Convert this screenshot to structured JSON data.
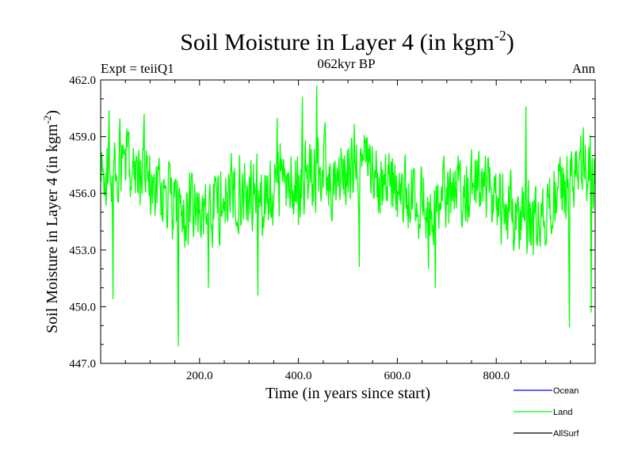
{
  "chart_data": {
    "type": "line",
    "title": "Soil Moisture in Layer 4 (in kgm",
    "title_sup": "-2",
    "title_end": ")",
    "subtitle": "062kyr BP",
    "left_note": "Expt = teiiQ1",
    "right_note": "Ann",
    "xlabel": "Time (in years since start)",
    "ylabel": "Soil Moisture in Layer 4 (in kgm",
    "ylabel_sup": "-2",
    "ylabel_end": ")",
    "xlim": [
      0,
      1000
    ],
    "ylim": [
      447.0,
      462.0
    ],
    "xticks": [
      200,
      400,
      600,
      800
    ],
    "xtick_labels": [
      "200.0",
      "400.0",
      "600.0",
      "800.0"
    ],
    "yticks": [
      447,
      450,
      453,
      456,
      459,
      462
    ],
    "ytick_labels": [
      "447.0",
      "450.0",
      "453.0",
      "456.0",
      "459.0",
      "462.0"
    ],
    "grid": false,
    "legend_position": "bottom-right, below plot",
    "series": [
      {
        "name": "Ocean",
        "color": "#0000ff",
        "values": []
      },
      {
        "name": "Land",
        "color": "#00ff00",
        "mean": 456.0,
        "min": 447.9,
        "max": 461.7,
        "x_start": 1,
        "x_end": 1000,
        "step": 1,
        "notable_points": [
          [
            17,
            460.4
          ],
          [
            25,
            450.4
          ],
          [
            88,
            460.2
          ],
          [
            157,
            447.9
          ],
          [
            218,
            451.0
          ],
          [
            318,
            450.6
          ],
          [
            357,
            460.0
          ],
          [
            408,
            461.1
          ],
          [
            437,
            461.7
          ],
          [
            523,
            452.1
          ],
          [
            663,
            452.0
          ],
          [
            677,
            451.0
          ],
          [
            860,
            460.6
          ],
          [
            948,
            448.9
          ],
          [
            992,
            449.7
          ]
        ]
      },
      {
        "name": "AllSurf",
        "color": "#000000",
        "values": []
      }
    ]
  }
}
